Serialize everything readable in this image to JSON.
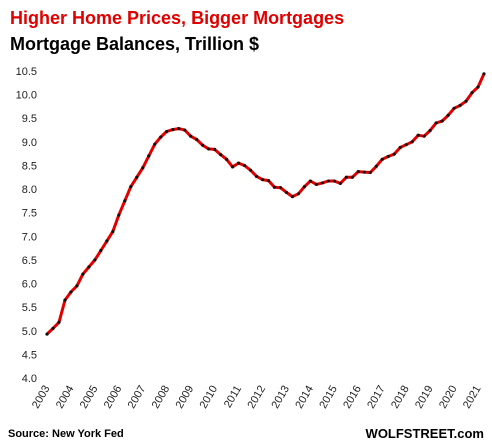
{
  "chart_data": {
    "type": "line",
    "title": "Higher Home Prices, Bigger Mortgages",
    "subtitle": "Mortgage Balances, Trillion $",
    "source": "Source: New York Fed",
    "watermark": "WOLFSTREET.com",
    "categories": [
      "2003",
      null,
      null,
      null,
      "2004",
      null,
      null,
      null,
      "2005",
      null,
      null,
      null,
      "2006",
      null,
      null,
      null,
      "2007",
      null,
      null,
      null,
      "2008",
      null,
      null,
      null,
      "2009",
      null,
      null,
      null,
      "2010",
      null,
      null,
      null,
      "2011",
      null,
      null,
      null,
      "2012",
      null,
      null,
      null,
      "2013",
      null,
      null,
      null,
      "2014",
      null,
      null,
      null,
      "2015",
      null,
      null,
      null,
      "2016",
      null,
      null,
      null,
      "2017",
      null,
      null,
      null,
      "2018",
      null,
      null,
      null,
      "2019",
      null,
      null,
      null,
      "2020",
      null,
      null,
      null,
      "2021",
      null
    ],
    "series": [
      {
        "name": "Mortgage Balances",
        "color": "#e00000",
        "marker_color": "#111111",
        "values": [
          4.93,
          5.05,
          5.18,
          5.65,
          5.82,
          5.95,
          6.2,
          6.35,
          6.5,
          6.7,
          6.9,
          7.1,
          7.45,
          7.75,
          8.05,
          8.25,
          8.45,
          8.7,
          8.95,
          9.1,
          9.22,
          9.26,
          9.28,
          9.25,
          9.12,
          9.05,
          8.93,
          8.85,
          8.84,
          8.73,
          8.63,
          8.47,
          8.55,
          8.5,
          8.4,
          8.27,
          8.2,
          8.18,
          8.04,
          8.03,
          7.93,
          7.84,
          7.9,
          8.05,
          8.17,
          8.1,
          8.13,
          8.17,
          8.17,
          8.12,
          8.25,
          8.25,
          8.37,
          8.36,
          8.35,
          8.48,
          8.63,
          8.69,
          8.74,
          8.88,
          8.94,
          9.0,
          9.14,
          9.12,
          9.24,
          9.4,
          9.44,
          9.56,
          9.71,
          9.77,
          9.86,
          10.04,
          10.16,
          10.44
        ]
      }
    ],
    "ylim": [
      4.0,
      10.5
    ],
    "yticks": [
      {
        "value": 4,
        "label": "4.0"
      },
      4.5,
      {
        "value": 5,
        "label": "5.0"
      },
      5.5,
      {
        "value": 6,
        "label": "6.0"
      },
      6.5,
      {
        "value": 7,
        "label": "7.0"
      },
      7.5,
      {
        "value": 8,
        "label": "8.0"
      },
      8.5,
      {
        "value": 9,
        "label": "9.0"
      },
      9.5,
      {
        "value": 10,
        "label": "10.0"
      },
      10.5
    ],
    "grid": false
  }
}
